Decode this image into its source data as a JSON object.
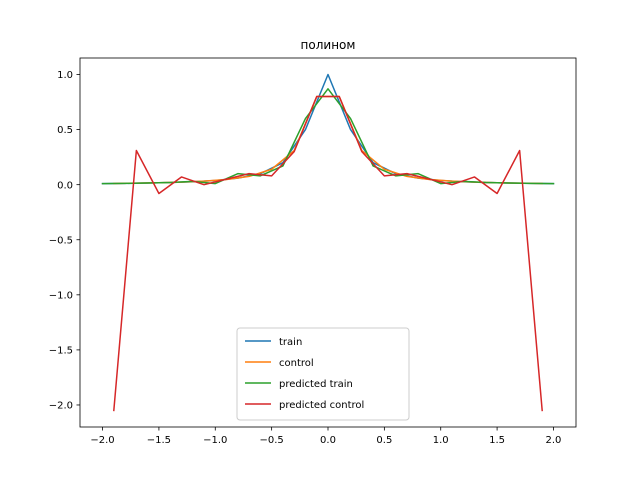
{
  "chart_data": {
    "type": "line",
    "title": "полином",
    "xlabel": "",
    "ylabel": "",
    "xlim": [
      -2.2,
      2.2
    ],
    "ylim": [
      -2.2,
      1.15
    ],
    "xticks": [
      -2.0,
      -1.5,
      -1.0,
      -0.5,
      0.0,
      0.5,
      1.0,
      1.5,
      2.0
    ],
    "xtick_labels": [
      "−2.0",
      "−1.5",
      "−1.0",
      "−0.5",
      "0.0",
      "0.5",
      "1.0",
      "1.5",
      "2.0"
    ],
    "yticks": [
      -2.0,
      -1.5,
      -1.0,
      -0.5,
      0.0,
      0.5,
      1.0
    ],
    "ytick_labels": [
      "−2.0",
      "−1.5",
      "−1.0",
      "−0.5",
      "0.0",
      "0.5",
      "1.0"
    ],
    "grid": false,
    "legend_position": "bottom-center",
    "series": [
      {
        "name": "train",
        "color": "#1f77b4",
        "x": [
          -2.0,
          -1.8,
          -1.6,
          -1.4,
          -1.2,
          -1.0,
          -0.8,
          -0.6,
          -0.4,
          -0.2,
          0.0,
          0.2,
          0.4,
          0.6,
          0.8,
          1.0,
          1.2,
          1.4,
          1.6,
          1.8,
          2.0
        ],
        "y": [
          0.0099,
          0.012,
          0.015,
          0.02,
          0.027,
          0.038,
          0.059,
          0.1,
          0.2,
          0.5,
          1.0,
          0.5,
          0.2,
          0.1,
          0.059,
          0.038,
          0.027,
          0.02,
          0.015,
          0.012,
          0.0099
        ]
      },
      {
        "name": "control",
        "color": "#ff7f0e",
        "x": [
          -1.9,
          -1.7,
          -1.5,
          -1.3,
          -1.1,
          -0.9,
          -0.7,
          -0.5,
          -0.3,
          -0.1,
          0.1,
          0.3,
          0.5,
          0.7,
          0.9,
          1.1,
          1.3,
          1.5,
          1.7,
          1.9
        ],
        "y": [
          0.011,
          0.014,
          0.017,
          0.023,
          0.032,
          0.047,
          0.075,
          0.14,
          0.31,
          0.8,
          0.8,
          0.31,
          0.14,
          0.075,
          0.047,
          0.032,
          0.023,
          0.017,
          0.014,
          0.011
        ]
      },
      {
        "name": "predicted train",
        "color": "#2ca02c",
        "x": [
          -2.0,
          -1.8,
          -1.6,
          -1.4,
          -1.2,
          -1.0,
          -0.8,
          -0.6,
          -0.4,
          -0.2,
          0.0,
          0.2,
          0.4,
          0.6,
          0.8,
          1.0,
          1.2,
          1.4,
          1.6,
          1.8,
          2.0
        ],
        "y": [
          0.0099,
          0.012,
          0.015,
          0.02,
          0.03,
          0.01,
          0.1,
          0.08,
          0.17,
          0.6,
          0.87,
          0.6,
          0.17,
          0.08,
          0.1,
          0.01,
          0.03,
          0.02,
          0.015,
          0.012,
          0.0099
        ]
      },
      {
        "name": "predicted control",
        "color": "#d62728",
        "x": [
          -1.9,
          -1.7,
          -1.5,
          -1.3,
          -1.1,
          -0.9,
          -0.7,
          -0.5,
          -0.3,
          -0.1,
          0.1,
          0.3,
          0.5,
          0.7,
          0.9,
          1.1,
          1.3,
          1.5,
          1.7,
          1.9
        ],
        "y": [
          -2.05,
          0.31,
          -0.08,
          0.07,
          0.0,
          0.05,
          0.1,
          0.08,
          0.3,
          0.8,
          0.8,
          0.3,
          0.08,
          0.1,
          0.05,
          0.0,
          0.07,
          -0.08,
          0.31,
          -2.05
        ]
      }
    ]
  }
}
